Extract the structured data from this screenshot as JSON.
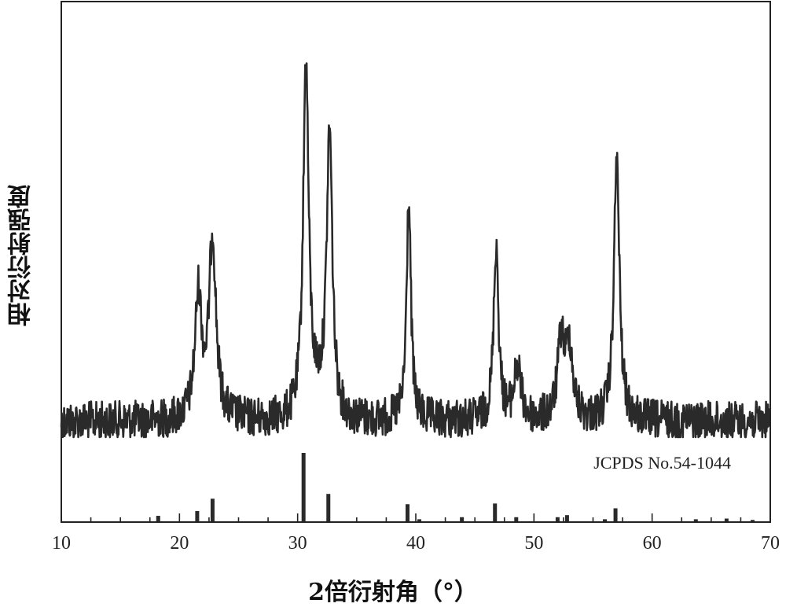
{
  "chart_data": {
    "type": "line",
    "xlabel": "2倍衍射角（°）",
    "ylabel": "相对衍射强度",
    "xlim": [
      10,
      70
    ],
    "xticks": [
      10,
      20,
      30,
      40,
      50,
      60,
      70
    ],
    "grid": false,
    "annotation": "JCPDS No.54-1044",
    "pattern_peaks": [
      {
        "x": 21.6,
        "y": 0.35
      },
      {
        "x": 22.8,
        "y": 0.52
      },
      {
        "x": 30.7,
        "y": 1.0
      },
      {
        "x": 32.7,
        "y": 0.8
      },
      {
        "x": 39.4,
        "y": 0.63
      },
      {
        "x": 46.8,
        "y": 0.5
      },
      {
        "x": 48.6,
        "y": 0.15
      },
      {
        "x": 52.3,
        "y": 0.22
      },
      {
        "x": 53.0,
        "y": 0.2
      },
      {
        "x": 57.0,
        "y": 0.74
      }
    ],
    "reference_lines": [
      {
        "x": 18.2,
        "y": 0.08
      },
      {
        "x": 21.5,
        "y": 0.15
      },
      {
        "x": 22.8,
        "y": 0.33
      },
      {
        "x": 30.5,
        "y": 1.0
      },
      {
        "x": 32.6,
        "y": 0.4
      },
      {
        "x": 39.3,
        "y": 0.25
      },
      {
        "x": 40.3,
        "y": 0.03
      },
      {
        "x": 43.9,
        "y": 0.06
      },
      {
        "x": 46.7,
        "y": 0.26
      },
      {
        "x": 48.5,
        "y": 0.06
      },
      {
        "x": 52.0,
        "y": 0.06
      },
      {
        "x": 52.8,
        "y": 0.09
      },
      {
        "x": 56.0,
        "y": 0.03
      },
      {
        "x": 56.9,
        "y": 0.19
      },
      {
        "x": 63.7,
        "y": 0.03
      },
      {
        "x": 66.3,
        "y": 0.04
      },
      {
        "x": 68.5,
        "y": 0.02
      }
    ]
  }
}
